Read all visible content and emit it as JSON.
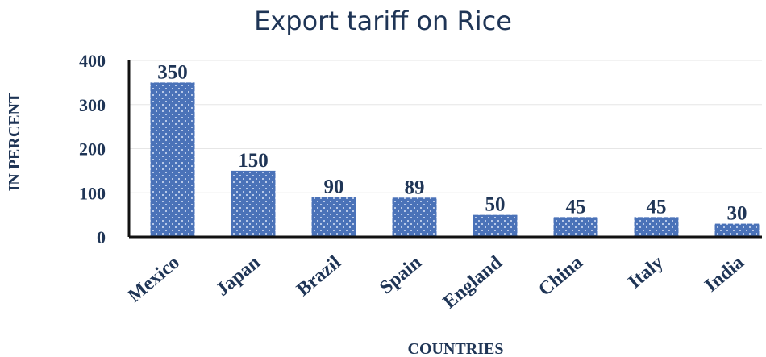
{
  "chart_data": {
    "type": "bar",
    "title": "Export tariff on Rice",
    "xlabel": "COUNTRIES",
    "ylabel": "IN PERCENT",
    "categories": [
      "Mexico",
      "Japan",
      "Brazil",
      "Spain",
      "England",
      "China",
      "Italy",
      "India"
    ],
    "values": [
      350,
      150,
      90,
      89,
      50,
      45,
      45,
      30
    ],
    "data_labels": [
      "350",
      "150",
      "90",
      "89",
      "50",
      "45",
      "45",
      "30"
    ],
    "ylim": [
      0,
      400
    ],
    "yticks": [
      0,
      100,
      200,
      300,
      400
    ],
    "ytick_labels": [
      "0",
      "100",
      "200",
      "300",
      "400"
    ],
    "grid": true,
    "legend": "none",
    "colors": {
      "bar": "#4a72b8",
      "bar_dots": "#dbe5f7",
      "text": "#1f3556",
      "grid": "#e6e6e6",
      "axis": "#111111"
    }
  }
}
